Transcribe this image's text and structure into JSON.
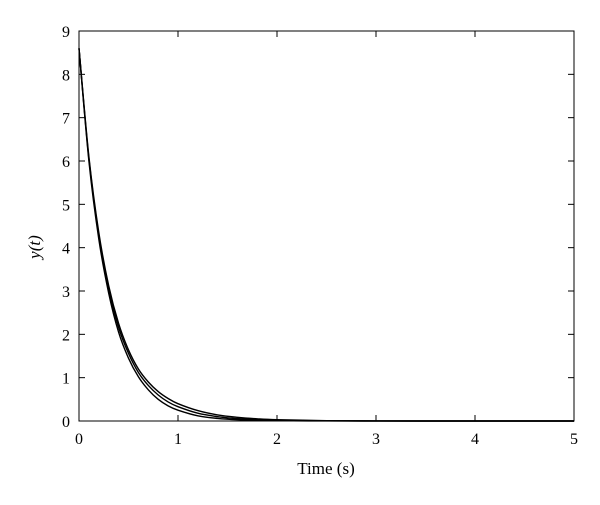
{
  "chart_data": {
    "type": "line",
    "title": "",
    "xlabel": "Time (s)",
    "ylabel_parts": [
      "y(",
      "t",
      ")"
    ],
    "xlim": [
      0,
      5
    ],
    "ylim": [
      0,
      9
    ],
    "xticks": [
      0,
      1,
      2,
      3,
      4,
      5
    ],
    "yticks": [
      0,
      1,
      2,
      3,
      4,
      5,
      6,
      7,
      8,
      9
    ],
    "grid": false,
    "legend": "none",
    "line_color": "#000000",
    "series": [
      {
        "x": [
          0,
          0.1,
          0.2,
          0.3,
          0.4,
          0.5,
          0.6,
          0.7,
          0.8,
          0.9,
          1.0,
          1.2,
          1.4,
          1.6,
          1.8,
          2.0,
          2.5,
          3.0,
          3.5,
          4.0,
          4.5,
          5.0
        ],
        "values": [
          8.6,
          6.0,
          4.2,
          2.95,
          2.05,
          1.45,
          1.02,
          0.72,
          0.5,
          0.35,
          0.25,
          0.12,
          0.06,
          0.03,
          0.015,
          0.007,
          0.001,
          0,
          0,
          0,
          0,
          0
        ]
      },
      {
        "x": [
          0,
          0.1,
          0.2,
          0.3,
          0.4,
          0.5,
          0.6,
          0.7,
          0.8,
          0.9,
          1.0,
          1.2,
          1.4,
          1.6,
          1.8,
          2.0,
          2.5,
          3.0,
          3.5,
          4.0,
          4.5,
          5.0
        ],
        "values": [
          8.6,
          6.05,
          4.28,
          3.05,
          2.16,
          1.56,
          1.12,
          0.82,
          0.6,
          0.44,
          0.33,
          0.18,
          0.1,
          0.055,
          0.03,
          0.016,
          0.004,
          0.001,
          0,
          0,
          0,
          0
        ]
      },
      {
        "x": [
          0,
          0.1,
          0.2,
          0.3,
          0.4,
          0.5,
          0.6,
          0.7,
          0.8,
          0.9,
          1.0,
          1.2,
          1.4,
          1.6,
          1.8,
          2.0,
          2.5,
          3.0,
          3.5,
          4.0,
          4.5,
          5.0
        ],
        "values": [
          8.6,
          6.1,
          4.35,
          3.12,
          2.25,
          1.64,
          1.2,
          0.9,
          0.68,
          0.52,
          0.4,
          0.24,
          0.14,
          0.085,
          0.05,
          0.03,
          0.008,
          0.002,
          0,
          0,
          0,
          0
        ]
      }
    ]
  }
}
